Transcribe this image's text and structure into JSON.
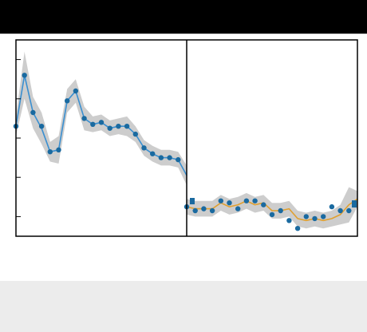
{
  "chart_data": {
    "type": "line",
    "title": "",
    "xlabel": "",
    "ylabel": "",
    "split_at": 20,
    "xlim": [
      0,
      40
    ],
    "ylim": [
      0,
      1
    ],
    "grid": false,
    "legend": "none",
    "colors": {
      "left_line": "#3a8fd0",
      "right_line": "#e0a030",
      "points": "#1a6aa0",
      "band": "#c8c8c8",
      "frame": "#000000"
    },
    "series": [
      {
        "segment": "left",
        "x": [
          0,
          1,
          2,
          3,
          4,
          5,
          6,
          7,
          8,
          9,
          10,
          11,
          12,
          13,
          14,
          15,
          16,
          17,
          18,
          19,
          20
        ],
        "values": [
          0.56,
          0.82,
          0.63,
          0.55,
          0.43,
          0.44,
          0.69,
          0.74,
          0.6,
          0.57,
          0.58,
          0.55,
          0.56,
          0.56,
          0.52,
          0.45,
          0.42,
          0.4,
          0.4,
          0.39,
          0.31
        ],
        "points": [
          0.56,
          0.82,
          0.63,
          0.56,
          0.43,
          0.44,
          0.69,
          0.74,
          0.6,
          0.57,
          0.58,
          0.55,
          0.56,
          0.56,
          0.52,
          0.45,
          0.42,
          0.4,
          0.4,
          0.39,
          null
        ],
        "band_width": [
          0.05,
          0.12,
          0.08,
          0.08,
          0.05,
          0.07,
          0.06,
          0.06,
          0.06,
          0.04,
          0.04,
          0.04,
          0.04,
          0.05,
          0.04,
          0.04,
          0.04,
          0.04,
          0.04,
          0.04,
          0.05
        ]
      },
      {
        "segment": "right",
        "x": [
          20,
          21,
          22,
          23,
          24,
          25,
          26,
          27,
          28,
          29,
          30,
          31,
          32,
          33,
          34,
          35,
          36,
          37,
          38,
          39,
          40
        ],
        "values": [
          0.15,
          0.14,
          0.14,
          0.14,
          0.17,
          0.15,
          0.16,
          0.18,
          0.16,
          0.17,
          0.13,
          0.13,
          0.14,
          0.09,
          0.08,
          0.09,
          0.08,
          0.09,
          0.11,
          0.16,
          0.19
        ],
        "points": [
          0.15,
          0.13,
          0.14,
          0.13,
          0.18,
          0.17,
          0.14,
          0.18,
          0.18,
          0.16,
          0.11,
          0.13,
          0.08,
          0.04,
          0.1,
          0.09,
          0.1,
          0.15,
          0.13,
          0.13,
          null
        ],
        "band_width": [
          0.04,
          0.04,
          0.04,
          0.04,
          0.04,
          0.04,
          0.04,
          0.04,
          0.04,
          0.04,
          0.04,
          0.04,
          0.04,
          0.04,
          0.04,
          0.04,
          0.04,
          0.04,
          0.05,
          0.09,
          0.04
        ]
      }
    ]
  }
}
